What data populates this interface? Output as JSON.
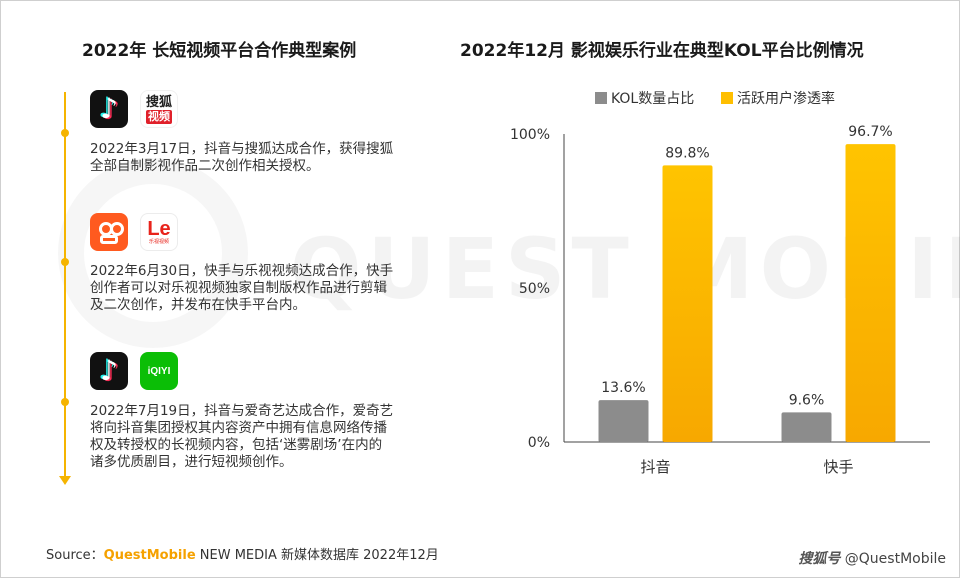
{
  "left_title": "2022年 长短视频平台合作典型案例",
  "right_title": "2022年12月 影视娱乐行业在典型KOL平台比例情况",
  "cases": [
    {
      "logos": [
        {
          "icon": "douyin-logo-icon",
          "text": ""
        },
        {
          "icon": "sohu-video-logo-icon",
          "text": "搜狐",
          "sub": "视频"
        }
      ],
      "lines": [
        "2022年3月17日，抖音与搜狐达成合作，获得搜狐",
        "全部自制影视作品二次创作相关授权。"
      ]
    },
    {
      "logos": [
        {
          "icon": "kuaishou-logo-icon",
          "text": ""
        },
        {
          "icon": "letv-logo-icon",
          "text": "Le",
          "sub": "乐视视频"
        }
      ],
      "lines": [
        "2022年6月30日，快手与乐视视频达成合作，快手",
        "创作者可以对乐视视频独家自制版权作品进行剪辑",
        "及二次创作，并发布在快手平台内。"
      ]
    },
    {
      "logos": [
        {
          "icon": "douyin-logo-icon",
          "text": ""
        },
        {
          "icon": "iqiyi-logo-icon",
          "text": "iQIYI"
        }
      ],
      "lines": [
        "2022年7月19日，抖音与爱奇艺达成合作，爱奇艺",
        "将向抖音集团授权其内容资产中拥有信息网络传播",
        "权及转授权的长视频内容，包括‘迷雾剧场’在内的",
        "诸多优质剧目，进行短视频创作。"
      ]
    }
  ],
  "chart_data": {
    "type": "bar",
    "categories": [
      "抖音",
      "快手"
    ],
    "series": [
      {
        "name": "KOL数量占比",
        "values": [
          13.6,
          9.6
        ],
        "color": "#8c8c8c"
      },
      {
        "name": "活跃用户渗透率",
        "values": [
          89.8,
          96.7
        ],
        "color": "#ffbf00"
      }
    ],
    "y_tick_labels": [
      "0%",
      "50%",
      "100%"
    ],
    "y_ticks": [
      0,
      50,
      100
    ],
    "ylim": [
      0,
      100
    ],
    "value_suffix": "%",
    "legend_position": "top",
    "grid": false
  },
  "footer": {
    "source_label": "Source：",
    "brand": "QuestMobile",
    "source_rest": " NEW MEDIA 新媒体数据库 2022年12月",
    "platform_mark": "搜狐号",
    "account": "@QuestMobile"
  },
  "watermark": "QUEST MOBILE"
}
